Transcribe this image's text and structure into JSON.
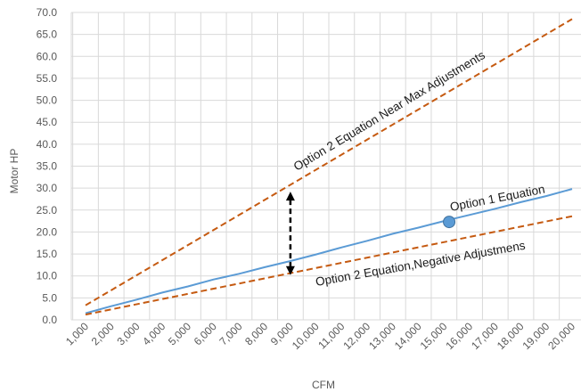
{
  "chart_data": {
    "type": "line",
    "title": "",
    "xlabel": "CFM",
    "ylabel": "Motor HP",
    "xlim": [
      1000,
      20000
    ],
    "ylim": [
      0,
      70
    ],
    "grid": true,
    "legend": "none",
    "x_tick_labels": [
      "1,000",
      "2,000",
      "3,000",
      "4,000",
      "5,000",
      "6,000",
      "7,000",
      "8,000",
      "9,000",
      "10,000",
      "11,000",
      "12,000",
      "13,000",
      "14,000",
      "15,000",
      "16,000",
      "17,000",
      "18,000",
      "19,000",
      "20,000"
    ],
    "x_ticks": [
      1000,
      2000,
      3000,
      4000,
      5000,
      6000,
      7000,
      8000,
      9000,
      10000,
      11000,
      12000,
      13000,
      14000,
      15000,
      16000,
      17000,
      18000,
      19000,
      20000
    ],
    "y_tick_labels": [
      "0.0",
      "5.0",
      "10.0",
      "15.0",
      "20.0",
      "25.0",
      "30.0",
      "35.0",
      "40.0",
      "45.0",
      "50.0",
      "55.0",
      "60.0",
      "65.0",
      "70.0"
    ],
    "y_ticks": [
      0,
      5,
      10,
      15,
      20,
      25,
      30,
      35,
      40,
      45,
      50,
      55,
      60,
      65,
      70
    ],
    "series": [
      {
        "color": "#5b9bd5",
        "dash": false,
        "x": [
          1000,
          2000,
          3000,
          4000,
          5000,
          6000,
          7000,
          8000,
          9000,
          10000,
          11000,
          12000,
          13000,
          14000,
          15000,
          16000,
          17000,
          18000,
          19000,
          20000
        ],
        "y": [
          1.5,
          3.1,
          4.6,
          6.2,
          7.6,
          9.2,
          10.5,
          12.0,
          13.4,
          14.9,
          16.5,
          18.0,
          19.6,
          21.0,
          22.5,
          23.9,
          25.3,
          26.8,
          28.2,
          29.8
        ]
      },
      {
        "color": "#c55a11",
        "dash": true,
        "x": [
          1000,
          20000
        ],
        "y": [
          3.3,
          68.5
        ]
      },
      {
        "color": "#c55a11",
        "dash": true,
        "x": [
          1000,
          20000
        ],
        "y": [
          1.2,
          23.6
        ]
      }
    ],
    "marker": {
      "x": 15200,
      "y": 22.3,
      "color": "#5b9bd5"
    },
    "arrow": {
      "x": 9000,
      "y1": 10.2,
      "y2": 29.2
    },
    "annotations": [
      {
        "text": "Option 1 Equation"
      },
      {
        "text": "Option 2 Equation Near Max Adjustments"
      },
      {
        "text": "Option 2 Equation,Negative Adjustmens"
      }
    ]
  }
}
